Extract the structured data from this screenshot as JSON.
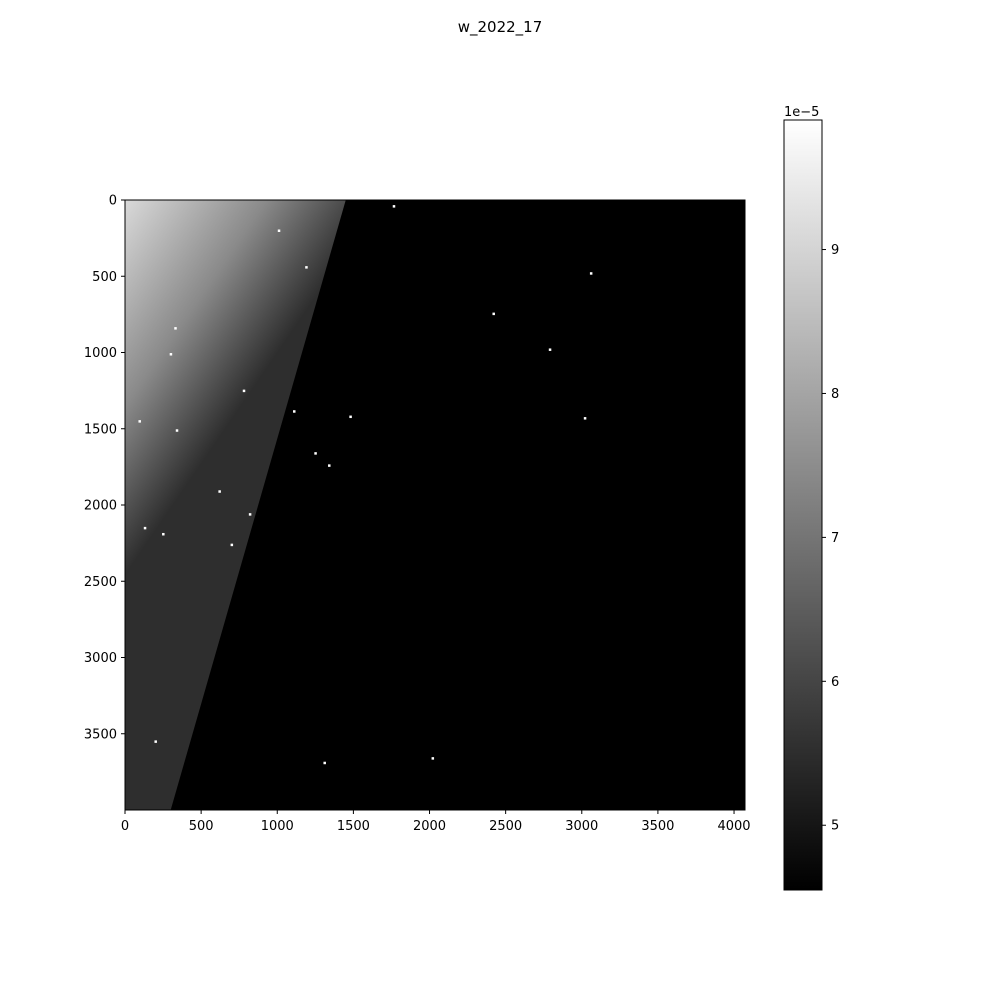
{
  "chart_data": {
    "type": "heatmap",
    "title": "w_2022_17",
    "xlabel": "",
    "ylabel": "",
    "colormap": "gray",
    "image_extent": {
      "x": [
        0,
        4072
      ],
      "y": [
        4000,
        0
      ]
    },
    "x_ticks": [
      0,
      500,
      1000,
      1500,
      2000,
      2500,
      3000,
      3500,
      4000
    ],
    "x_tick_labels": [
      "0",
      "500",
      "1000",
      "1500",
      "2000",
      "2500",
      "3000",
      "3500",
      "4000"
    ],
    "y_ticks": [
      0,
      500,
      1000,
      1500,
      2000,
      2500,
      3000,
      3500
    ],
    "y_tick_labels": [
      "0",
      "500",
      "1000",
      "1500",
      "2000",
      "2500",
      "3000",
      "3500"
    ],
    "gradient_region": {
      "description_values": "bright region in upper-left, boundary runs from x≈1450 at y=0 to x≈300 at y=4000",
      "boundary": [
        [
          1450,
          0
        ],
        [
          300,
          4000
        ]
      ],
      "corner_value": 9.3,
      "edge_value": 5.3,
      "background_value": 4.55
    },
    "hot_pixels": [
      [
        1765,
        40
      ],
      [
        1010,
        200
      ],
      [
        3060,
        480
      ],
      [
        1190,
        440
      ],
      [
        2420,
        745
      ],
      [
        330,
        840
      ],
      [
        2790,
        980
      ],
      [
        300,
        1010
      ],
      [
        780,
        1250
      ],
      [
        1110,
        1385
      ],
      [
        95,
        1450
      ],
      [
        1480,
        1420
      ],
      [
        3020,
        1430
      ],
      [
        340,
        1510
      ],
      [
        1250,
        1660
      ],
      [
        1340,
        1740
      ],
      [
        620,
        1910
      ],
      [
        820,
        2060
      ],
      [
        130,
        2150
      ],
      [
        250,
        2190
      ],
      [
        700,
        2260
      ],
      [
        200,
        3550
      ],
      [
        1310,
        3690
      ],
      [
        2020,
        3660
      ]
    ],
    "colorbar": {
      "range": [
        4.55,
        9.9
      ],
      "ticks": [
        5,
        6,
        7,
        8,
        9
      ],
      "tick_labels": [
        "5",
        "6",
        "7",
        "8",
        "9"
      ],
      "offset_label": "1e−5"
    }
  }
}
